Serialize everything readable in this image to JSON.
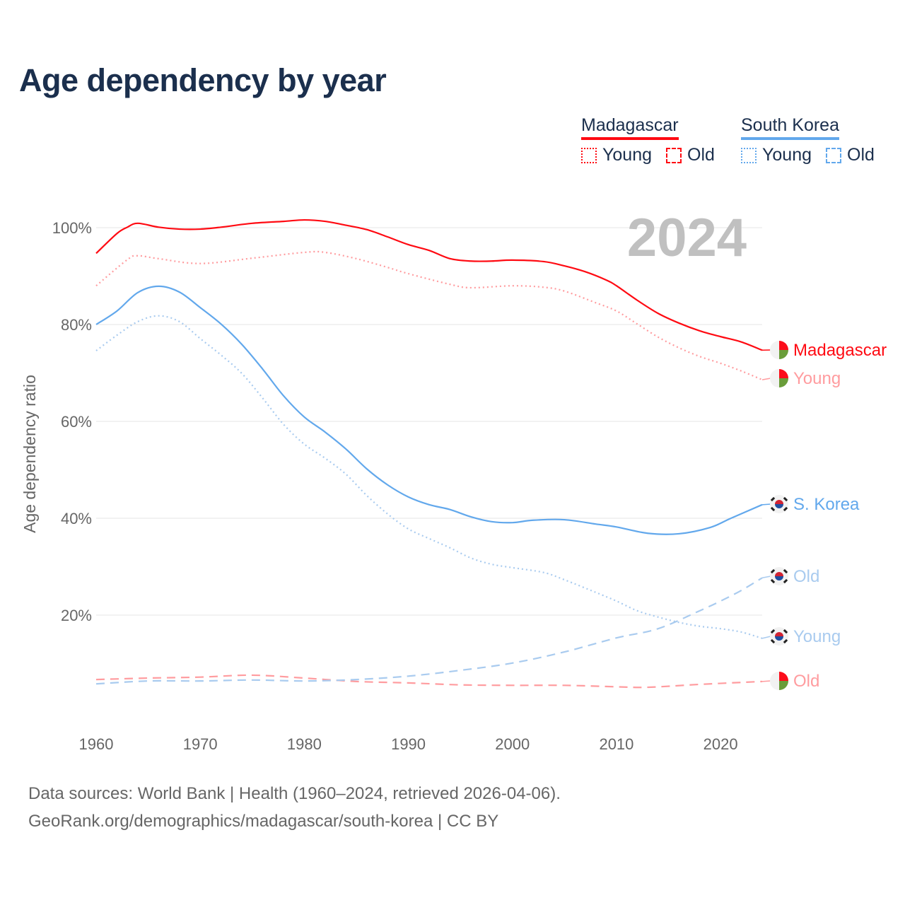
{
  "title": "Age dependency by year",
  "legend": {
    "countries": [
      {
        "name": "Madagascar",
        "color": "#ff0a12",
        "items": [
          "Young",
          "Old"
        ]
      },
      {
        "name": "South Korea",
        "color": "#62a8ec",
        "items": [
          "Young",
          "Old"
        ]
      }
    ]
  },
  "year_watermark": "2024",
  "footer": {
    "line1": "Data sources: World Bank | Health (1960–2024, retrieved 2026-04-06).",
    "line2": "GeoRank.org/demographics/madagascar/south-korea | CC BY"
  },
  "chart_data": {
    "type": "line",
    "title": "Age dependency by year",
    "xlabel": "",
    "ylabel": "Age dependency ratio",
    "xlim": [
      1960,
      2024
    ],
    "ylim": [
      0,
      100
    ],
    "x_ticks": [
      "1960",
      "1970",
      "1980",
      "1990",
      "2000",
      "2010",
      "2020"
    ],
    "y_ticks": [
      "20%",
      "40%",
      "60%",
      "80%",
      "100%"
    ],
    "grid": true,
    "series": [
      {
        "name": "Madagascar",
        "end_label": "Madagascar",
        "country": "Madagascar",
        "style": "solid",
        "color": "#ff0a12",
        "points": [
          [
            1960,
            94.7
          ],
          [
            1962,
            98.8
          ],
          [
            1963,
            100.1
          ],
          [
            1964,
            100.9
          ],
          [
            1966,
            100.1
          ],
          [
            1968,
            99.7
          ],
          [
            1970,
            99.7
          ],
          [
            1972,
            100.1
          ],
          [
            1975,
            100.9
          ],
          [
            1978,
            101.3
          ],
          [
            1980,
            101.6
          ],
          [
            1982,
            101.3
          ],
          [
            1984,
            100.5
          ],
          [
            1986,
            99.6
          ],
          [
            1988,
            98.1
          ],
          [
            1990,
            96.5
          ],
          [
            1992,
            95.3
          ],
          [
            1994,
            93.6
          ],
          [
            1996,
            93.1
          ],
          [
            1998,
            93.1
          ],
          [
            2000,
            93.3
          ],
          [
            2003,
            93.0
          ],
          [
            2005,
            92.1
          ],
          [
            2007,
            90.9
          ],
          [
            2009,
            89.2
          ],
          [
            2010,
            88.0
          ],
          [
            2012,
            85.0
          ],
          [
            2014,
            82.3
          ],
          [
            2016,
            80.3
          ],
          [
            2018,
            78.7
          ],
          [
            2020,
            77.5
          ],
          [
            2022,
            76.4
          ],
          [
            2024,
            74.7
          ]
        ]
      },
      {
        "name": "Madagascar Young",
        "end_label": "Young",
        "country": "Madagascar",
        "style": "dotted",
        "color": "#ff9c9f",
        "points": [
          [
            1960,
            88.0
          ],
          [
            1963,
            93.4
          ],
          [
            1964,
            94.2
          ],
          [
            1966,
            93.6
          ],
          [
            1970,
            92.6
          ],
          [
            1975,
            93.7
          ],
          [
            1980,
            94.9
          ],
          [
            1982,
            94.9
          ],
          [
            1985,
            93.6
          ],
          [
            1988,
            91.8
          ],
          [
            1990,
            90.5
          ],
          [
            1994,
            88.3
          ],
          [
            1996,
            87.6
          ],
          [
            2000,
            88.0
          ],
          [
            2003,
            87.7
          ],
          [
            2005,
            86.9
          ],
          [
            2008,
            84.5
          ],
          [
            2010,
            82.8
          ],
          [
            2012,
            80.1
          ],
          [
            2014,
            77.4
          ],
          [
            2016,
            75.2
          ],
          [
            2018,
            73.4
          ],
          [
            2020,
            72.0
          ],
          [
            2022,
            70.4
          ],
          [
            2024,
            68.6
          ]
        ]
      },
      {
        "name": "Madagascar Old",
        "end_label": "Old",
        "country": "Madagascar",
        "style": "dashed",
        "color": "#ff9c9f",
        "points": [
          [
            1960,
            6.7
          ],
          [
            1965,
            7.0
          ],
          [
            1970,
            7.2
          ],
          [
            1975,
            7.6
          ],
          [
            1980,
            7.0
          ],
          [
            1985,
            6.3
          ],
          [
            1990,
            6.0
          ],
          [
            1995,
            5.6
          ],
          [
            2000,
            5.5
          ],
          [
            2005,
            5.5
          ],
          [
            2010,
            5.2
          ],
          [
            2013,
            5.1
          ],
          [
            2018,
            5.7
          ],
          [
            2024,
            6.3
          ]
        ]
      },
      {
        "name": "South Korea",
        "end_label": "S. Korea",
        "country": "South Korea",
        "style": "solid",
        "color": "#62a8ec",
        "points": [
          [
            1960,
            80.0
          ],
          [
            1962,
            82.8
          ],
          [
            1964,
            86.6
          ],
          [
            1966,
            87.9
          ],
          [
            1968,
            86.7
          ],
          [
            1970,
            83.5
          ],
          [
            1972,
            80.1
          ],
          [
            1974,
            75.9
          ],
          [
            1976,
            70.8
          ],
          [
            1978,
            65.3
          ],
          [
            1980,
            60.9
          ],
          [
            1982,
            57.8
          ],
          [
            1984,
            54.3
          ],
          [
            1986,
            50.2
          ],
          [
            1988,
            46.9
          ],
          [
            1990,
            44.4
          ],
          [
            1992,
            42.8
          ],
          [
            1994,
            41.8
          ],
          [
            1996,
            40.3
          ],
          [
            1998,
            39.3
          ],
          [
            2000,
            39.1
          ],
          [
            2002,
            39.6
          ],
          [
            2005,
            39.7
          ],
          [
            2008,
            38.8
          ],
          [
            2010,
            38.2
          ],
          [
            2013,
            36.9
          ],
          [
            2016,
            36.8
          ],
          [
            2019,
            38.1
          ],
          [
            2021,
            40.0
          ],
          [
            2024,
            42.8
          ]
        ]
      },
      {
        "name": "South Korea Old",
        "end_label": "Old",
        "country": "South Korea",
        "style": "dashed",
        "color": "#a9cbef",
        "points": [
          [
            1960,
            5.8
          ],
          [
            1965,
            6.4
          ],
          [
            1970,
            6.4
          ],
          [
            1975,
            6.6
          ],
          [
            1980,
            6.4
          ],
          [
            1985,
            6.7
          ],
          [
            1990,
            7.4
          ],
          [
            1995,
            8.6
          ],
          [
            2000,
            10.1
          ],
          [
            2005,
            12.4
          ],
          [
            2010,
            15.3
          ],
          [
            2014,
            17.2
          ],
          [
            2018,
            20.9
          ],
          [
            2020,
            22.9
          ],
          [
            2022,
            25.1
          ],
          [
            2024,
            27.7
          ]
        ]
      },
      {
        "name": "South Korea Young",
        "end_label": "Young",
        "country": "South Korea",
        "style": "dotted",
        "color": "#a9cbef",
        "points": [
          [
            1960,
            74.6
          ],
          [
            1962,
            77.8
          ],
          [
            1964,
            80.6
          ],
          [
            1966,
            81.8
          ],
          [
            1968,
            80.6
          ],
          [
            1970,
            77.1
          ],
          [
            1972,
            73.7
          ],
          [
            1974,
            69.9
          ],
          [
            1976,
            64.8
          ],
          [
            1978,
            59.4
          ],
          [
            1980,
            55.3
          ],
          [
            1982,
            52.4
          ],
          [
            1984,
            49.1
          ],
          [
            1986,
            44.7
          ],
          [
            1988,
            40.9
          ],
          [
            1990,
            37.8
          ],
          [
            1992,
            35.8
          ],
          [
            1994,
            33.9
          ],
          [
            1996,
            31.8
          ],
          [
            1998,
            30.5
          ],
          [
            2000,
            29.8
          ],
          [
            2003,
            28.8
          ],
          [
            2005,
            27.3
          ],
          [
            2008,
            24.7
          ],
          [
            2010,
            22.9
          ],
          [
            2012,
            20.9
          ],
          [
            2014,
            19.6
          ],
          [
            2016,
            18.5
          ],
          [
            2018,
            17.7
          ],
          [
            2020,
            17.2
          ],
          [
            2022,
            16.5
          ],
          [
            2024,
            15.2
          ]
        ]
      }
    ]
  }
}
